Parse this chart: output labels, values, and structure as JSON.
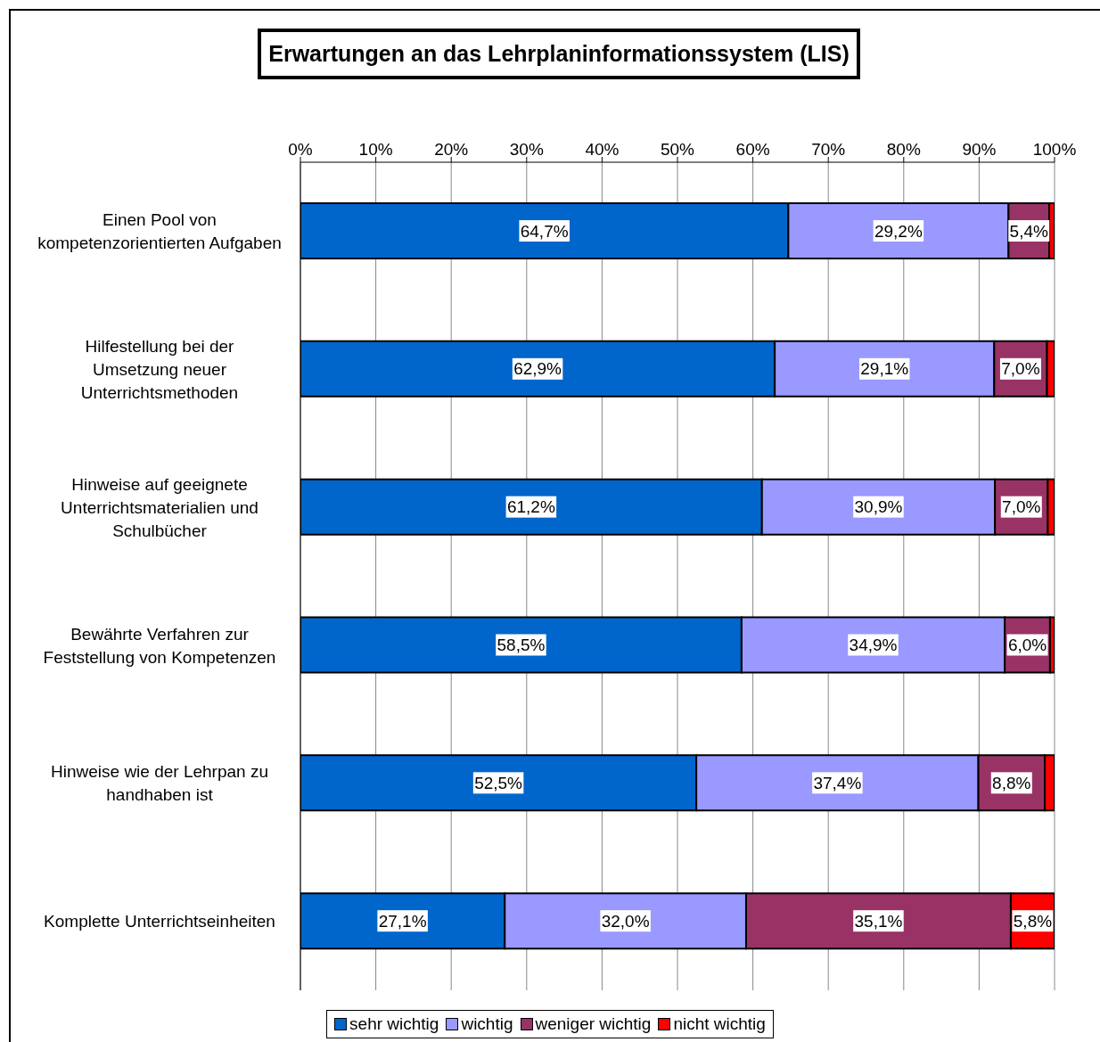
{
  "chart_data": {
    "type": "bar",
    "orientation": "horizontal",
    "stacked": true,
    "title": "Erwartungen an das Lehrplaninformationssystem (LIS)",
    "categories": [
      "Einen Pool von kompetenzorientierten Aufgaben",
      "Hilfestellung bei der Umsetzung neuer Unterrichtsmethoden",
      "Hinweise auf geeignete Unterrichtsmaterialien und Schulbücher",
      "Bewährte Verfahren zur Feststellung von Kompetenzen",
      "Hinweise wie der Lehrpan zu handhaben ist",
      "Komplette Unterrichtseinheiten"
    ],
    "series": [
      {
        "name": "sehr wichtig",
        "color": "#0066cc",
        "values": [
          64.7,
          62.9,
          61.2,
          58.5,
          52.5,
          27.1
        ],
        "value_labels": [
          "64,7%",
          "62,9%",
          "61,2%",
          "58,5%",
          "52,5%",
          "27,1%"
        ]
      },
      {
        "name": "wichtig",
        "color": "#9999ff",
        "values": [
          29.2,
          29.1,
          30.9,
          34.9,
          37.4,
          32.0
        ],
        "value_labels": [
          "29,2%",
          "29,1%",
          "30,9%",
          "34,9%",
          "37,4%",
          "32,0%"
        ]
      },
      {
        "name": "weniger wichtig",
        "color": "#993366",
        "values": [
          5.4,
          7.0,
          7.0,
          6.0,
          8.8,
          35.1
        ],
        "value_labels": [
          "5,4%",
          "7,0%",
          "7,0%",
          "6,0%",
          "8,8%",
          "35,1%"
        ]
      },
      {
        "name": "nicht wichtig",
        "color": "#ff0000",
        "values": [
          0.7,
          1.0,
          0.9,
          0.6,
          1.3,
          5.8
        ],
        "value_labels": [
          null,
          null,
          null,
          null,
          null,
          "5,8%"
        ]
      }
    ],
    "xlim": [
      0,
      100
    ],
    "xticks": [
      {
        "value": 0,
        "label": "0%"
      },
      {
        "value": 10,
        "label": "10%"
      },
      {
        "value": 20,
        "label": "20%"
      },
      {
        "value": 30,
        "label": "30%"
      },
      {
        "value": 40,
        "label": "40%"
      },
      {
        "value": 50,
        "label": "50%"
      },
      {
        "value": 60,
        "label": "60%"
      },
      {
        "value": 70,
        "label": "70%"
      },
      {
        "value": 80,
        "label": "80%"
      },
      {
        "value": 90,
        "label": "90%"
      },
      {
        "value": 100,
        "label": "100%"
      }
    ],
    "grid": "x",
    "legend": "bottom"
  }
}
